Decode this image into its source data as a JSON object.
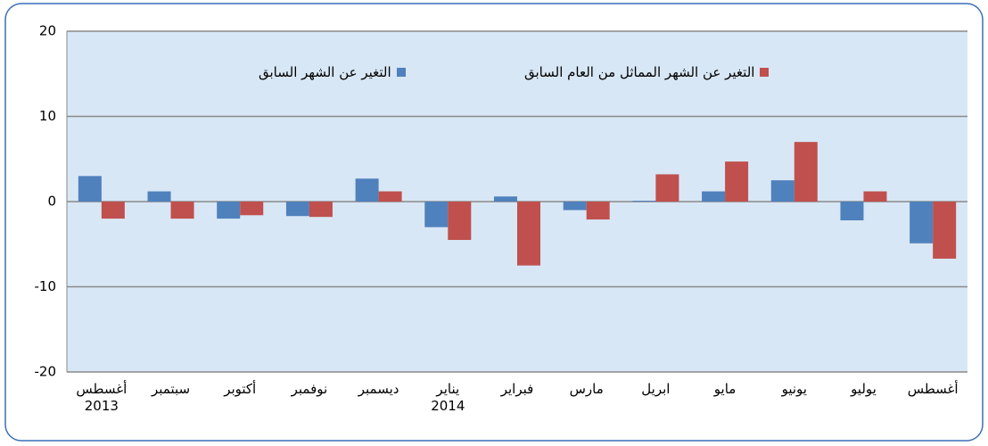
{
  "chart_data": {
    "type": "bar",
    "categories": [
      "أغسطس\n2013",
      "سبتمبر",
      "أكتوبر",
      "نوفمبر",
      "ديسمبر",
      "يناير\n2014",
      "فبراير",
      "مارس",
      "ابريل",
      "مايو",
      "يونيو",
      "يوليو",
      "أغسطس"
    ],
    "series": [
      {
        "name": "التغير عن الشهر السابق",
        "color": "#4f81bd",
        "values": [
          3.0,
          1.2,
          -2.0,
          -1.7,
          2.7,
          -3.0,
          0.6,
          -1.0,
          0.1,
          1.2,
          2.5,
          -2.2,
          -4.9
        ]
      },
      {
        "name": "التغير عن الشهر المماثل من العام السابق",
        "color": "#c0504d",
        "values": [
          -2.0,
          -2.0,
          -1.6,
          -1.8,
          1.2,
          -4.5,
          -7.5,
          -2.1,
          3.2,
          4.7,
          7.0,
          1.2,
          -6.7
        ]
      }
    ],
    "ylim": [
      -20,
      20
    ],
    "yticks": [
      -20,
      -10,
      0,
      10,
      20
    ],
    "grid": true
  }
}
